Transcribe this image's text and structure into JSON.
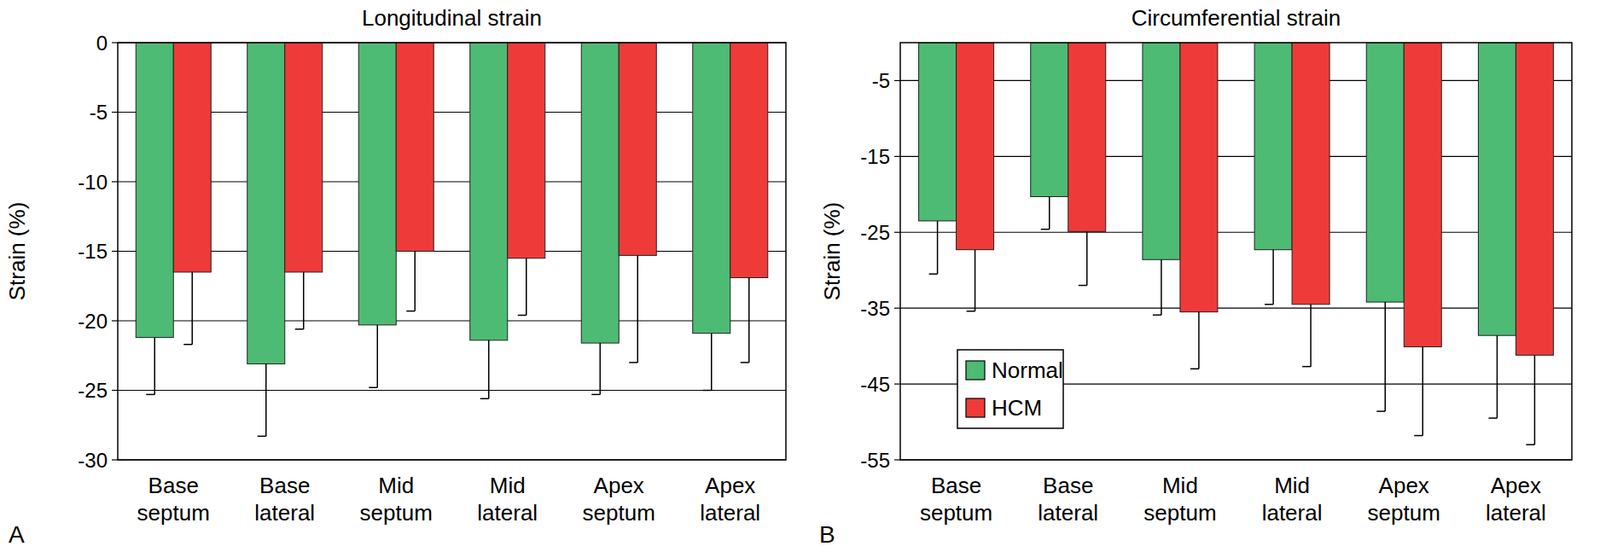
{
  "chart_data": [
    {
      "type": "bar",
      "panel_label": "A",
      "title": "Longitudinal strain",
      "y_label": "Strain (%)",
      "categories": [
        "Base septum",
        "Base lateral",
        "Mid septum",
        "Mid lateral",
        "Apex septum",
        "Apex lateral"
      ],
      "series": [
        {
          "name": "Normal",
          "color": "#4dbb73",
          "values": [
            -21.2,
            -23.1,
            -20.3,
            -21.4,
            -21.6,
            -20.9
          ],
          "errors": [
            4.1,
            5.2,
            4.5,
            4.2,
            3.7,
            4.1
          ]
        },
        {
          "name": "HCM",
          "color": "#ee3b39",
          "values": [
            -16.5,
            -16.5,
            -15.0,
            -15.5,
            -15.3,
            -16.9
          ],
          "errors": [
            5.2,
            4.1,
            4.3,
            4.1,
            7.7,
            6.1
          ]
        }
      ],
      "ylim": [
        -30,
        0
      ],
      "yticks": [
        0,
        -5,
        -10,
        -15,
        -20,
        -25,
        -30
      ],
      "grid": true
    },
    {
      "type": "bar",
      "panel_label": "B",
      "title": "Circumferential strain",
      "y_label": "Strain (%)",
      "categories": [
        "Base septum",
        "Base lateral",
        "Mid septum",
        "Mid lateral",
        "Apex septum",
        "Apex lateral"
      ],
      "series": [
        {
          "name": "Normal",
          "color": "#4dbb73",
          "values": [
            -23.5,
            -20.3,
            -28.6,
            -27.3,
            -34.2,
            -38.6
          ],
          "errors": [
            7.0,
            4.3,
            7.3,
            7.2,
            14.4,
            10.9
          ]
        },
        {
          "name": "HCM",
          "color": "#ee3b39",
          "values": [
            -27.3,
            -24.9,
            -35.5,
            -34.5,
            -40.1,
            -41.2
          ],
          "errors": [
            8.1,
            7.1,
            7.5,
            8.2,
            11.7,
            11.8
          ]
        }
      ],
      "ylim": [
        -55,
        0
      ],
      "yticks": [
        -5,
        -15,
        -25,
        -35,
        -45,
        -55
      ],
      "grid": true,
      "legend": "lower left"
    }
  ]
}
